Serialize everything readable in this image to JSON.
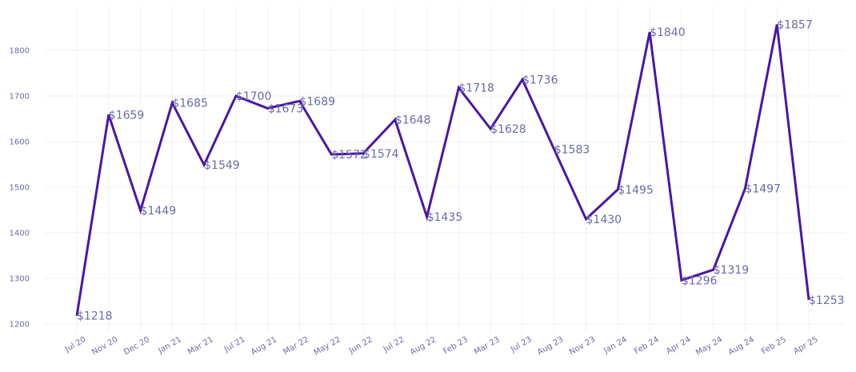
{
  "chart_data": {
    "type": "line",
    "title": "",
    "xlabel": "",
    "ylabel": "",
    "categories": [
      "Jul 20",
      "Nov 20",
      "Dec 20",
      "Jan 21",
      "Mar 21",
      "Jul 21",
      "Aug 21",
      "Mar 22",
      "May 22",
      "Jun 22",
      "Jul 22",
      "Aug 22",
      "Feb 23",
      "Mar 23",
      "Jul 23",
      "Aug 23",
      "Nov 23",
      "Jan 24",
      "Feb 24",
      "Apr 24",
      "May 24",
      "Aug 24",
      "Feb 25",
      "Apr 25"
    ],
    "values": [
      1218,
      1659,
      1449,
      1685,
      1549,
      1700,
      1673,
      1689,
      1572,
      1574,
      1648,
      1435,
      1718,
      1628,
      1736,
      1583,
      1430,
      1495,
      1840,
      1296,
      1319,
      1497,
      1857,
      1253
    ],
    "data_labels": [
      "$1218",
      "$1659",
      "$1449",
      "$1685",
      "$1549",
      "$1700",
      "$1673",
      "$1689",
      "$1572",
      "$1574",
      "$1648",
      "$1435",
      "$1718",
      "$1628",
      "$1736",
      "$1583",
      "$1430",
      "$1495",
      "$1840",
      "$1296",
      "$1319",
      "$1497",
      "$1857",
      "$1253"
    ],
    "y_ticks": [
      "1200",
      "1300",
      "1400",
      "1500",
      "1600",
      "1700",
      "1800"
    ],
    "ylim": [
      1185,
      1885
    ],
    "grid": true,
    "legend": "none",
    "line_color": "#4b16a6"
  }
}
